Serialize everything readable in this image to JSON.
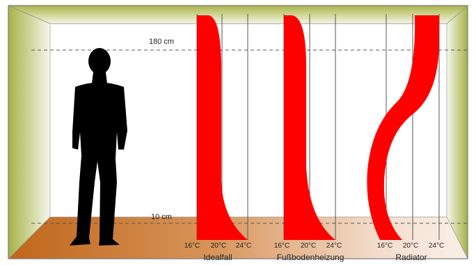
{
  "heights": {
    "ceiling_label": "180 cm",
    "floor_label": "10 cm"
  },
  "profiles": [
    {
      "name": "Idealfall",
      "ticks": [
        "16°C",
        "20°C",
        "24°C"
      ]
    },
    {
      "name": "Fußbodenheizung",
      "ticks": [
        "16°C",
        "20°C",
        "24°C"
      ]
    },
    {
      "name": "Radiator",
      "ticks": [
        "16°C",
        "20°C",
        "24°C"
      ]
    }
  ],
  "colors": {
    "profile_fill": "#ff0000",
    "floor": "#c46a1e",
    "wall_green": "#b7c05a",
    "silhouette": "#000000"
  }
}
